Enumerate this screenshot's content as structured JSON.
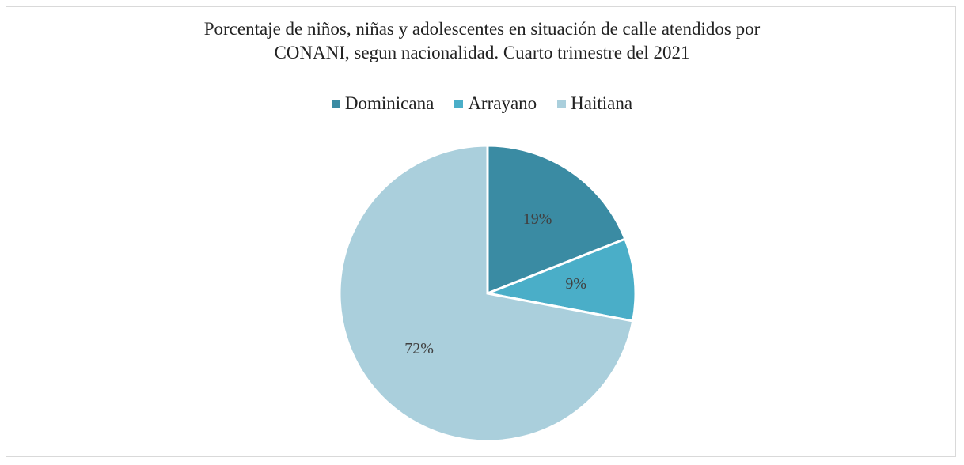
{
  "chart_data": {
    "type": "pie",
    "title_lines": [
      "Porcentaje de niños, niñas y adolescentes en situación de calle atendidos por",
      "CONANI, segun nacionalidad. Cuarto trimestre del 2021"
    ],
    "legend_position": "top",
    "categories": [
      "Dominicana",
      "Arrayano",
      "Haitiana"
    ],
    "values": [
      19,
      9,
      72
    ],
    "labels": [
      "19%",
      "9%",
      "72%"
    ],
    "colors": [
      "#3a8ba3",
      "#4aaec8",
      "#aacfdc"
    ]
  }
}
